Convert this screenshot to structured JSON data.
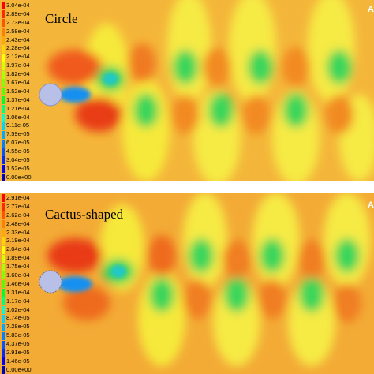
{
  "panels": [
    {
      "title": "Circle",
      "corner_tag": "A",
      "legend": [
        "3.04e-04",
        "2.89e-04",
        "2.73e-04",
        "2.58e-04",
        "2.43e-04",
        "2.28e-04",
        "2.12e-04",
        "1.97e-04",
        "1.82e-04",
        "1.67e-04",
        "1.52e-04",
        "1.37e-04",
        "1.21e-04",
        "1.06e-04",
        "9.11e-05",
        "7.59e-05",
        "6.07e-05",
        "4.55e-05",
        "3.04e-05",
        "1.52e-05",
        "0.00e+00"
      ]
    },
    {
      "title": "Cactus-shaped",
      "corner_tag": "A",
      "legend": [
        "2.91e-04",
        "2.77e-04",
        "2.62e-04",
        "2.48e-04",
        "2.33e-04",
        "2.19e-04",
        "2.04e-04",
        "1.89e-04",
        "1.75e-04",
        "1.60e-04",
        "1.46e-04",
        "1.31e-04",
        "1.17e-04",
        "1.02e-04",
        "8.74e-05",
        "7.28e-05",
        "5.83e-05",
        "4.37e-05",
        "2.91e-05",
        "1.46e-05",
        "0.00e+00"
      ]
    }
  ],
  "colors": {
    "scale": [
      "#ff0000",
      "#ff2a00",
      "#ff5500",
      "#ff7f00",
      "#ffaa00",
      "#ffd400",
      "#ffff00",
      "#d4ff00",
      "#aaff00",
      "#7fff00",
      "#55ff00",
      "#00ff2a",
      "#00ff7f",
      "#00ffd4",
      "#00d4ff",
      "#00aaff",
      "#007fff",
      "#0055ff",
      "#002aff",
      "#0000ff",
      "#0000c0"
    ],
    "background": "#f9c23c"
  }
}
